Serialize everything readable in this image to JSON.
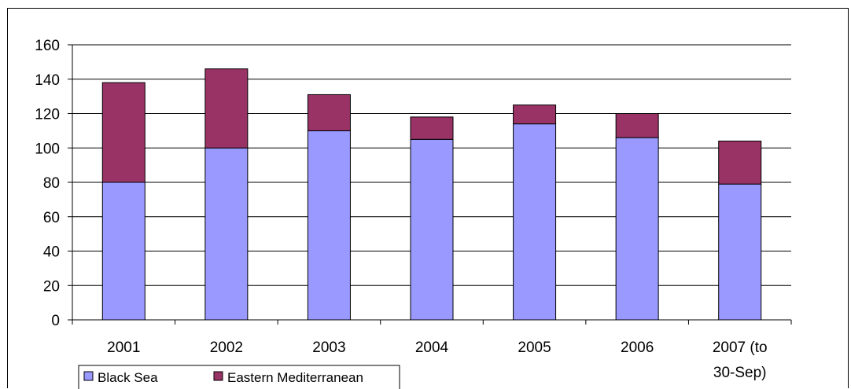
{
  "chart_data": {
    "type": "bar",
    "stacked": true,
    "title": "",
    "xlabel": "",
    "ylabel": "",
    "categories": [
      "2001",
      "2002",
      "2003",
      "2004",
      "2005",
      "2006",
      "2007 (to 30-Sep)"
    ],
    "category_lines": [
      [
        "2001"
      ],
      [
        "2002"
      ],
      [
        "2003"
      ],
      [
        "2004"
      ],
      [
        "2005"
      ],
      [
        "2006"
      ],
      [
        "2007 (to",
        "30-Sep)"
      ]
    ],
    "series": [
      {
        "name": "Black Sea",
        "color": "#9999ff",
        "values": [
          80,
          100,
          110,
          105,
          114,
          106,
          79
        ]
      },
      {
        "name": "Eastern Mediterranean",
        "color": "#993366",
        "values": [
          58,
          46,
          21,
          13,
          11,
          14,
          25
        ]
      }
    ],
    "ylim": [
      0,
      160
    ],
    "yticks": [
      0,
      20,
      40,
      60,
      80,
      100,
      120,
      140,
      160
    ],
    "grid": true,
    "legend_position": "bottom-left"
  }
}
